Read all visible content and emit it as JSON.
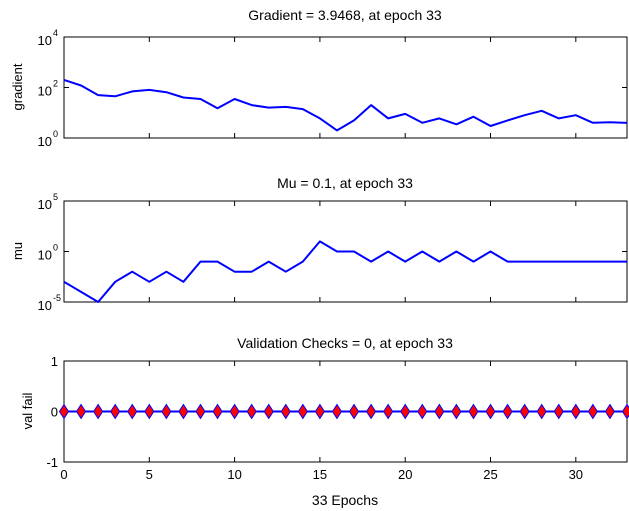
{
  "chart_data": [
    {
      "type": "line",
      "id": "gradient",
      "title": "Gradient = 3.9468, at epoch 33",
      "ylabel": "gradient",
      "yscale": "log",
      "ylim": [
        1,
        10000
      ],
      "xlim": [
        0,
        33
      ],
      "yticks": [
        {
          "value": 1,
          "base": "10",
          "exp": "0"
        },
        {
          "value": 100,
          "base": "10",
          "exp": "2"
        },
        {
          "value": 10000,
          "base": "10",
          "exp": "4"
        }
      ],
      "show_xtick_labels": false,
      "series": [
        {
          "color": "#0000ff",
          "x": [
            0,
            1,
            2,
            3,
            4,
            5,
            6,
            7,
            8,
            9,
            10,
            11,
            12,
            13,
            14,
            15,
            16,
            17,
            18,
            19,
            20,
            21,
            22,
            23,
            24,
            25,
            26,
            27,
            28,
            29,
            30,
            31,
            32,
            33
          ],
          "y": [
            200,
            120,
            50,
            45,
            70,
            80,
            65,
            40,
            35,
            15,
            35,
            20,
            16,
            17,
            14,
            6,
            2,
            5,
            20,
            6,
            9,
            4,
            6,
            3.5,
            7,
            3,
            5,
            8,
            12,
            6,
            8,
            4,
            4.2,
            3.9468
          ]
        }
      ]
    },
    {
      "type": "line",
      "id": "mu",
      "title": "Mu = 0.1, at epoch 33",
      "ylabel": "mu",
      "yscale": "log",
      "ylim": [
        1e-05,
        100000
      ],
      "xlim": [
        0,
        33
      ],
      "yticks": [
        {
          "value": 1e-05,
          "base": "10",
          "exp": "-5"
        },
        {
          "value": 1,
          "base": "10",
          "exp": "0"
        },
        {
          "value": 100000,
          "base": "10",
          "exp": "5"
        }
      ],
      "show_xtick_labels": false,
      "series": [
        {
          "color": "#0000ff",
          "x": [
            0,
            1,
            2,
            3,
            4,
            5,
            6,
            7,
            8,
            9,
            10,
            11,
            12,
            13,
            14,
            15,
            16,
            17,
            18,
            19,
            20,
            21,
            22,
            23,
            24,
            25,
            26,
            27,
            28,
            29,
            30,
            31,
            32,
            33
          ],
          "y": [
            0.001,
            0.0001,
            1e-05,
            0.001,
            0.01,
            0.001,
            0.01,
            0.001,
            0.1,
            0.1,
            0.01,
            0.01,
            0.1,
            0.01,
            0.1,
            10,
            1,
            1,
            0.1,
            1,
            0.1,
            1,
            0.1,
            1,
            0.1,
            1,
            0.1,
            0.1,
            0.1,
            0.1,
            0.1,
            0.1,
            0.1,
            0.1
          ]
        }
      ]
    },
    {
      "type": "scatter",
      "id": "valfail",
      "title": "Validation Checks = 0, at epoch 33",
      "ylabel": "val fail",
      "xlabel": "33 Epochs",
      "yscale": "linear",
      "ylim": [
        -1,
        1
      ],
      "xlim": [
        0,
        33
      ],
      "yticks": [
        {
          "value": -1,
          "label": "-1"
        },
        {
          "value": 0,
          "label": "0"
        },
        {
          "value": 1,
          "label": "1"
        }
      ],
      "xticks": [
        0,
        5,
        10,
        15,
        20,
        25,
        30
      ],
      "show_xtick_labels": true,
      "series": [
        {
          "line_color": "#0000ff",
          "marker": "diamond",
          "marker_color": "#ff0000",
          "x": [
            0,
            1,
            2,
            3,
            4,
            5,
            6,
            7,
            8,
            9,
            10,
            11,
            12,
            13,
            14,
            15,
            16,
            17,
            18,
            19,
            20,
            21,
            22,
            23,
            24,
            25,
            26,
            27,
            28,
            29,
            30,
            31,
            32,
            33
          ],
          "y": [
            0,
            0,
            0,
            0,
            0,
            0,
            0,
            0,
            0,
            0,
            0,
            0,
            0,
            0,
            0,
            0,
            0,
            0,
            0,
            0,
            0,
            0,
            0,
            0,
            0,
            0,
            0,
            0,
            0,
            0,
            0,
            0,
            0,
            0
          ]
        }
      ]
    }
  ]
}
